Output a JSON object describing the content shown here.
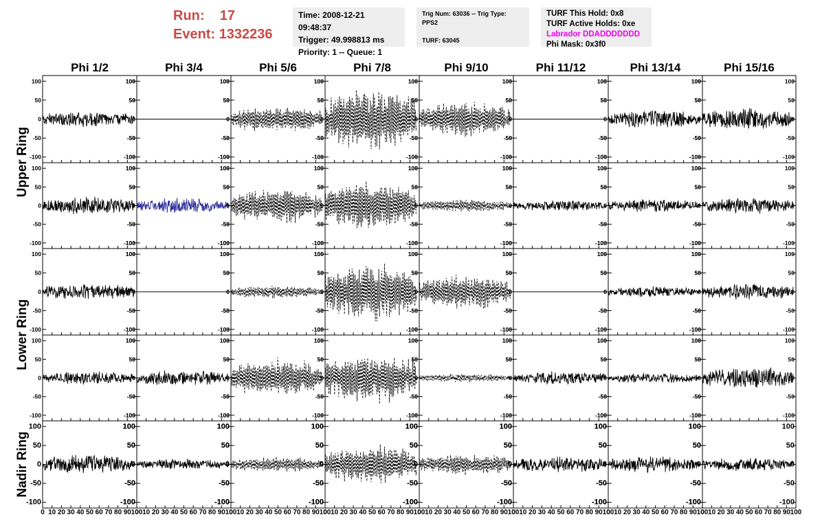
{
  "header": {
    "run_label": "Run:",
    "run_value": "17",
    "event_label": "Event:",
    "event_value": "1332236",
    "time": "Time: 2008-12-21 09:48:37",
    "trigger": "Trigger: 49.998813 ms",
    "priority": "Priority: 1 -- Queue: 1",
    "trig_num": "Trig Num: 63036 -- Trig Type: PPS2",
    "turf": "TURF: 63045",
    "turf_this_hold": "TURF This Hold: 0x8",
    "turf_active_holds": "TURF Active Holds: 0xe",
    "labrador": "Labrador DDADDDDDDD",
    "phi_mask": "Phi Mask: 0x3f0",
    "labrador_color": "#ee00ee",
    "run_color": "#c84a45",
    "box_color": "#eeeeee"
  },
  "chart_data": {
    "type": "line",
    "columns": [
      "Phi 1/2",
      "Phi 3/4",
      "Phi 5/6",
      "Phi 7/8",
      "Phi 9/10",
      "Phi 11/12",
      "Phi 13/14",
      "Phi 15/16"
    ],
    "ring_labels": [
      {
        "text": "Upper Ring",
        "rows": [
          0,
          1
        ]
      },
      {
        "text": "Lower Ring",
        "rows": [
          2,
          3
        ]
      },
      {
        "text": "Nadir Ring",
        "rows": [
          4
        ]
      }
    ],
    "xlim": [
      0,
      100
    ],
    "ylim": [
      -115,
      115
    ],
    "x_ticks": [
      0,
      10,
      20,
      30,
      40,
      50,
      60,
      70,
      80,
      90,
      100
    ],
    "y_ticks": [
      -100,
      -50,
      0,
      50,
      100
    ],
    "rows": [
      {
        "amps": [
          18,
          0,
          30,
          75,
          40,
          0,
          20,
          25
        ],
        "styles": [
          "solid",
          "flat",
          "dashed",
          "dashed",
          "dashed",
          "flat",
          "solid",
          "solid"
        ],
        "ends": [
          97,
          97,
          97,
          97,
          97,
          97,
          97,
          97
        ]
      },
      {
        "amps": [
          20,
          18,
          40,
          60,
          15,
          12,
          15,
          18
        ],
        "styles": [
          "solid",
          "blue",
          "dashed",
          "dashed",
          "dashed",
          "solid",
          "solid",
          "solid"
        ],
        "ends": [
          97,
          97,
          97,
          97,
          97,
          97,
          97,
          97
        ]
      },
      {
        "amps": [
          18,
          0,
          15,
          70,
          40,
          0,
          12,
          18
        ],
        "styles": [
          "solid",
          "flat",
          "dashed",
          "dashed",
          "dashed",
          "flat",
          "solid",
          "solid"
        ],
        "ends": [
          97,
          97,
          97,
          97,
          97,
          97,
          97,
          97
        ]
      },
      {
        "amps": [
          15,
          18,
          45,
          60,
          10,
          15,
          12,
          25
        ],
        "styles": [
          "solid",
          "solid",
          "dashed",
          "dashed",
          "dashed",
          "solid",
          "solid",
          "solid"
        ],
        "ends": [
          97,
          97,
          97,
          97,
          97,
          97,
          97,
          97
        ]
      },
      {
        "amps": [
          22,
          12,
          18,
          45,
          25,
          18,
          18,
          15
        ],
        "styles": [
          "solid",
          "solid",
          "dashed",
          "dashed",
          "dashed",
          "solid",
          "solid",
          "solid"
        ],
        "ends": [
          97,
          97,
          97,
          97,
          97,
          97,
          97,
          97
        ]
      }
    ],
    "line_color": "#000000",
    "highlight_color": "#2b2b9a",
    "grid": false
  }
}
